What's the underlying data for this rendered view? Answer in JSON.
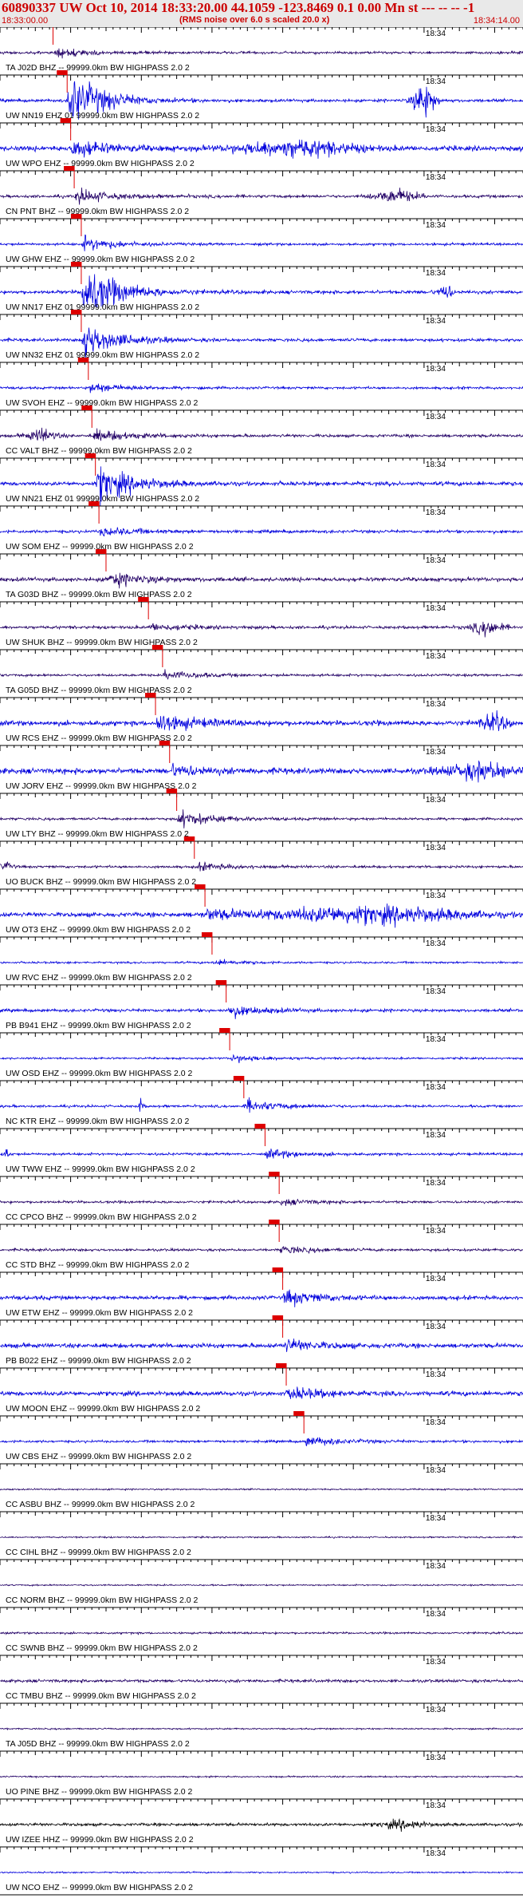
{
  "header": {
    "title": "60890337 UW Oct 10, 2014 18:33:20.00   44.1059 -123.8469  0.1 0.00 Mn st --- -- --   -1",
    "subtitle": "(RMS noise over 6.0 s scaled 20.0 x)",
    "start_time": "18:33:00.00",
    "end_time": "18:34:14.00"
  },
  "colors": {
    "accent": "#cc0000",
    "trace_blue": "#0000dd",
    "trace_purple": "#220066",
    "trace_black": "#000000",
    "pick_red": "#dd0000"
  },
  "chart_data": {
    "type": "line",
    "title": "60890337 UW Oct 10, 2014 18:33:20.00   44.1059 -123.8469  0.1 0.00 Mn st --- -- --   -1",
    "x_start": "18:33:00.00",
    "x_end": "18:34:14.00",
    "x_range_seconds": [
      0,
      74
    ],
    "minute_marker": {
      "label": "18:34",
      "t": 60
    },
    "grid": false,
    "stations": [
      {
        "label": "TA J02D BHZ -- 99999.0km BW  HIGHPASS  2.0  2",
        "color": "#220066",
        "pick": 7.5,
        "amp": 0.5,
        "event_amp": 2.2,
        "bursts": []
      },
      {
        "label": "UW NN19 EHZ 01 99999.0km BW  HIGHPASS  2.0  2",
        "color": "#0000dd",
        "pick": 9.5,
        "amp": 0.6,
        "event_amp": 12,
        "bursts": [
          {
            "t": 60,
            "a": 7,
            "w": 1.5
          }
        ]
      },
      {
        "label": "UW WPO EHZ -- 99999.0km BW  HIGHPASS  2.0  2",
        "color": "#0000dd",
        "pick": 10,
        "amp": 1.0,
        "event_amp": 4,
        "bursts": [
          {
            "t": 42,
            "a": 3,
            "w": 8
          }
        ]
      },
      {
        "label": "CN PNT BHZ -- 99999.0km BW  HIGHPASS  2.0  2",
        "color": "#220066",
        "pick": 10.5,
        "amp": 0.6,
        "event_amp": 3,
        "bursts": [
          {
            "t": 56,
            "a": 2.5,
            "w": 3
          }
        ]
      },
      {
        "label": "UW GHW EHZ -- 99999.0km BW  HIGHPASS  2.0  2",
        "color": "#0000dd",
        "pick": 11.5,
        "amp": 0.5,
        "event_amp": 3,
        "bursts": []
      },
      {
        "label": "UW NN17 EHZ 01 99999.0km BW  HIGHPASS  2.0  2",
        "color": "#0000dd",
        "pick": 11.5,
        "amp": 0.7,
        "event_amp": 12,
        "bursts": [
          {
            "t": 63,
            "a": 3,
            "w": 1
          }
        ]
      },
      {
        "label": "UW NN32 EHZ 01 99999.0km BW  HIGHPASS  2.0  2",
        "color": "#0000dd",
        "pick": 11.5,
        "amp": 0.6,
        "event_amp": 8,
        "bursts": []
      },
      {
        "label": "UW SVOH EHZ -- 99999.0km BW  HIGHPASS  2.0  2",
        "color": "#0000dd",
        "pick": 12.5,
        "amp": 0.5,
        "event_amp": 2,
        "bursts": []
      },
      {
        "label": "CC VALT BHZ -- 99999.0km BW  HIGHPASS  2.0  2",
        "color": "#220066",
        "pick": 13,
        "amp": 0.6,
        "event_amp": 2.5,
        "bursts": [
          {
            "t": 6,
            "a": 2.5,
            "w": 2
          }
        ]
      },
      {
        "label": "UW NN21 EHZ 01 99999.0km BW  HIGHPASS  2.0  2",
        "color": "#0000dd",
        "pick": 13.5,
        "amp": 0.8,
        "event_amp": 8,
        "bursts": []
      },
      {
        "label": "UW SOM EHZ -- 99999.0km BW  HIGHPASS  2.0  2",
        "color": "#0000dd",
        "pick": 14,
        "amp": 0.6,
        "event_amp": 2,
        "bursts": []
      },
      {
        "label": "TA G03D BHZ -- 99999.0km BW  HIGHPASS  2.0  2",
        "color": "#220066",
        "pick": 15,
        "amp": 0.8,
        "event_amp": 3,
        "bursts": []
      },
      {
        "label": "UW SHUK BHZ -- 99999.0km BW  HIGHPASS  2.0  2",
        "color": "#220066",
        "pick": 21,
        "amp": 0.6,
        "event_amp": 1.5,
        "bursts": [
          {
            "t": 69,
            "a": 3,
            "w": 2
          }
        ]
      },
      {
        "label": "TA G05D BHZ -- 99999.0km BW  HIGHPASS  2.0  2",
        "color": "#220066",
        "pick": 23,
        "amp": 0.5,
        "event_amp": 2,
        "bursts": []
      },
      {
        "label": "UW RCS EHZ -- 99999.0km BW  HIGHPASS  2.0  2",
        "color": "#0000dd",
        "pick": 22,
        "amp": 1.0,
        "event_amp": 4,
        "bursts": [
          {
            "t": 70,
            "a": 3,
            "w": 2
          }
        ]
      },
      {
        "label": "UW JORV EHZ -- 99999.0km BW  HIGHPASS  2.0  2",
        "color": "#0000dd",
        "pick": 24,
        "amp": 1.1,
        "event_amp": 2.5,
        "bursts": [
          {
            "t": 68,
            "a": 3,
            "w": 5
          }
        ]
      },
      {
        "label": "UW LTY BHZ -- 99999.0km BW  HIGHPASS  2.0  2",
        "color": "#220066",
        "pick": 25,
        "amp": 0.5,
        "event_amp": 3.5,
        "bursts": []
      },
      {
        "label": "UO BUCK BHZ -- 99999.0km BW  HIGHPASS  2.0  2",
        "color": "#220066",
        "pick": 27.5,
        "amp": 0.5,
        "event_amp": 1.5,
        "bursts": [
          {
            "t": 1,
            "a": 1.5,
            "w": 1
          }
        ]
      },
      {
        "label": "UW OT3 EHZ -- 99999.0km BW  HIGHPASS  2.0  2",
        "color": "#0000dd",
        "pick": 29,
        "amp": 0.9,
        "event_amp": 2,
        "bursts": [
          {
            "t": 52,
            "a": 3,
            "w": 14
          }
        ]
      },
      {
        "label": "UW RVC EHZ -- 99999.0km BW  HIGHPASS  2.0  2",
        "color": "#0000dd",
        "pick": 30,
        "amp": 0.4,
        "event_amp": 1,
        "bursts": []
      },
      {
        "label": "PB B941 EHZ -- 99999.0km BW  HIGHPASS  2.0  2",
        "color": "#0000dd",
        "pick": 32,
        "amp": 0.6,
        "event_amp": 2.5,
        "bursts": []
      },
      {
        "label": "UW OSD EHZ -- 99999.0km BW  HIGHPASS  2.0  2",
        "color": "#0000dd",
        "pick": 32.5,
        "amp": 0.4,
        "event_amp": 1.5,
        "bursts": []
      },
      {
        "label": "NC KTR EHZ -- 99999.0km BW  HIGHPASS  2.0  2",
        "color": "#0000dd",
        "pick": 34.5,
        "amp": 0.5,
        "event_amp": 2.5,
        "bursts": [
          {
            "t": 20,
            "a": 3.5,
            "w": 0.3
          }
        ]
      },
      {
        "label": "UW TWW EHZ -- 99999.0km BW  HIGHPASS  2.0  2",
        "color": "#0000dd",
        "pick": 37.5,
        "amp": 0.5,
        "event_amp": 2,
        "bursts": [
          {
            "t": 1,
            "a": 2,
            "w": 0.4
          }
        ]
      },
      {
        "label": "CC CPCO BHZ -- 99999.0km BW  HIGHPASS  2.0  2",
        "color": "#220066",
        "pick": 39.5,
        "amp": 0.5,
        "event_amp": 1.2,
        "bursts": []
      },
      {
        "label": "CC STD BHZ -- 99999.0km BW  HIGHPASS  2.0  2",
        "color": "#220066",
        "pick": 39.5,
        "amp": 0.5,
        "event_amp": 1.5,
        "bursts": []
      },
      {
        "label": "UW ETW EHZ -- 99999.0km BW  HIGHPASS  2.0  2",
        "color": "#0000dd",
        "pick": 40,
        "amp": 0.8,
        "event_amp": 3,
        "bursts": []
      },
      {
        "label": "PB B022 EHZ -- 99999.0km BW  HIGHPASS  2.0  2",
        "color": "#0000dd",
        "pick": 40,
        "amp": 0.9,
        "event_amp": 2.5,
        "bursts": []
      },
      {
        "label": "UW MOON EHZ -- 99999.0km BW  HIGHPASS  2.0  2",
        "color": "#0000dd",
        "pick": 40.5,
        "amp": 0.9,
        "event_amp": 2.5,
        "bursts": []
      },
      {
        "label": "UW CBS EHZ -- 99999.0km BW  HIGHPASS  2.0  2",
        "color": "#0000dd",
        "pick": 43,
        "amp": 0.5,
        "event_amp": 2,
        "bursts": []
      },
      {
        "label": "CC ASBU BHZ -- 99999.0km BW  HIGHPASS  2.0  2",
        "color": "#220066",
        "pick": null,
        "amp": 0.3,
        "event_amp": 0,
        "bursts": []
      },
      {
        "label": "CC CIHL BHZ -- 99999.0km BW  HIGHPASS  2.0  2",
        "color": "#220066",
        "pick": null,
        "amp": 0.3,
        "event_amp": 0,
        "bursts": []
      },
      {
        "label": "CC NORM BHZ -- 99999.0km BW  HIGHPASS  2.0  2",
        "color": "#220066",
        "pick": null,
        "amp": 0.3,
        "event_amp": 0,
        "bursts": []
      },
      {
        "label": "CC SWNB BHZ -- 99999.0km BW  HIGHPASS  2.0  2",
        "color": "#220066",
        "pick": null,
        "amp": 0.4,
        "event_amp": 0,
        "bursts": []
      },
      {
        "label": "CC TMBU BHZ -- 99999.0km BW  HIGHPASS  2.0  2",
        "color": "#220066",
        "pick": null,
        "amp": 0.6,
        "event_amp": 0,
        "bursts": []
      },
      {
        "label": "TA J05D BHZ -- 99999.0km BW  HIGHPASS  2.0  2",
        "color": "#220066",
        "pick": null,
        "amp": 0.3,
        "event_amp": 0,
        "bursts": []
      },
      {
        "label": "UO PINE BHZ -- 99999.0km BW  HIGHPASS  2.0  2",
        "color": "#220066",
        "pick": null,
        "amp": 0.3,
        "event_amp": 0,
        "bursts": []
      },
      {
        "label": "UW IZEE HHZ -- 99999.0km BW  HIGHPASS  2.0  2",
        "color": "#000000",
        "pick": null,
        "amp": 0.6,
        "event_amp": 0,
        "bursts": [
          {
            "t": 57,
            "a": 1.5,
            "w": 3
          }
        ]
      },
      {
        "label": "UW NCO EHZ -- 99999.0km BW  HIGHPASS  2.0  2",
        "color": "#0000dd",
        "pick": null,
        "amp": 0.3,
        "event_amp": 0,
        "bursts": []
      }
    ]
  }
}
